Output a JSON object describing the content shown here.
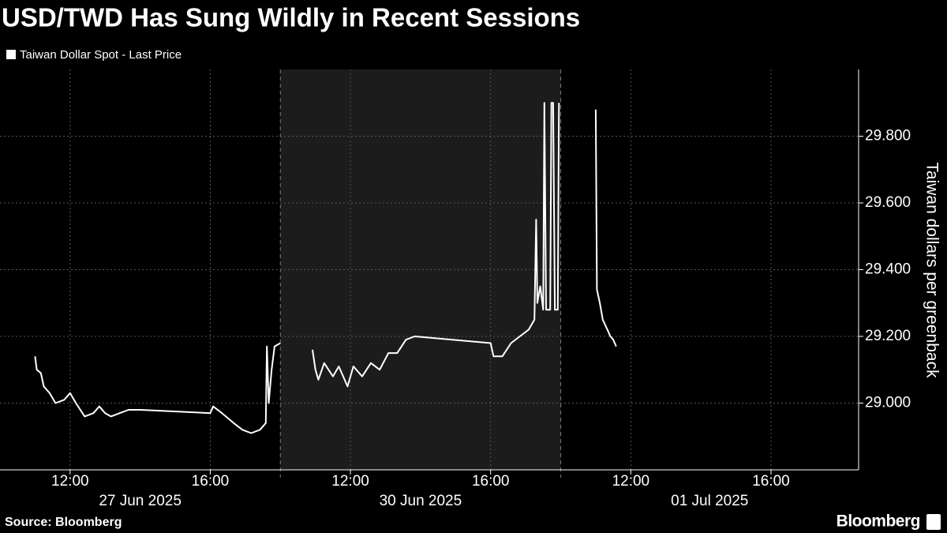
{
  "chart_data": {
    "type": "line",
    "title": "USD/TWD Has Sung Wildly in Recent Sessions",
    "ylabel": "Taiwan dollars per greenback",
    "source": "Source: Bloomberg",
    "brand": "Bloomberg",
    "ylim": [
      28.8,
      30.0
    ],
    "yticks": [
      {
        "value": 29.0,
        "label": "29.000"
      },
      {
        "value": 29.2,
        "label": "29.200"
      },
      {
        "value": 29.4,
        "label": "29.400"
      },
      {
        "value": 29.6,
        "label": "29.600"
      },
      {
        "value": 29.8,
        "label": "29.800"
      }
    ],
    "grid": true,
    "sessions": [
      {
        "label": "27 Jun 2025",
        "shaded": false,
        "xlim": [
          "2025-06-27T10:00",
          "2025-06-27T18:00"
        ],
        "xticks": [
          {
            "value": "2025-06-27T12:00",
            "label": "12:00"
          },
          {
            "value": "2025-06-27T16:00",
            "label": "16:00"
          }
        ]
      },
      {
        "label": "30 Jun 2025",
        "shaded": true,
        "xlim": [
          "2025-06-30T10:00",
          "2025-06-30T18:00"
        ],
        "xticks": [
          {
            "value": "2025-06-30T12:00",
            "label": "12:00"
          },
          {
            "value": "2025-06-30T16:00",
            "label": "16:00"
          }
        ]
      },
      {
        "label": "01 Jul 2025",
        "shaded": false,
        "xlim": [
          "2025-07-01T10:00",
          "2025-07-01T18:30"
        ],
        "xticks": [
          {
            "value": "2025-07-01T12:00",
            "label": "12:00"
          },
          {
            "value": "2025-07-01T16:00",
            "label": "16:00"
          }
        ]
      }
    ],
    "series": [
      {
        "name": "Taiwan Dollar Spot - Last Price",
        "color": "#ffffff",
        "x": [
          "2025-06-27T11:00",
          "2025-06-27T11:03",
          "2025-06-27T11:10",
          "2025-06-27T11:15",
          "2025-06-27T11:25",
          "2025-06-27T11:35",
          "2025-06-27T11:50",
          "2025-06-27T12:00",
          "2025-06-27T12:10",
          "2025-06-27T12:25",
          "2025-06-27T12:40",
          "2025-06-27T12:50",
          "2025-06-27T13:00",
          "2025-06-27T13:10",
          "2025-06-27T13:25",
          "2025-06-27T13:40",
          "2025-06-27T14:00",
          "2025-06-27T16:00",
          "2025-06-27T16:05",
          "2025-06-27T16:20",
          "2025-06-27T16:40",
          "2025-06-27T16:55",
          "2025-06-27T17:10",
          "2025-06-27T17:25",
          "2025-06-27T17:35",
          "2025-06-27T17:37",
          "2025-06-27T17:40",
          "2025-06-27T17:45",
          "2025-06-27T17:50",
          "2025-06-27T18:00",
          "2025-06-30T10:00",
          "2025-06-30T10:55",
          "2025-06-30T11:00",
          "2025-06-30T11:05",
          "2025-06-30T11:15",
          "2025-06-30T11:30",
          "2025-06-30T11:40",
          "2025-06-30T11:55",
          "2025-06-30T12:05",
          "2025-06-30T12:20",
          "2025-06-30T12:35",
          "2025-06-30T12:50",
          "2025-06-30T13:05",
          "2025-06-30T13:20",
          "2025-06-30T13:35",
          "2025-06-30T13:50",
          "2025-06-30T16:00",
          "2025-06-30T16:05",
          "2025-06-30T16:20",
          "2025-06-30T16:35",
          "2025-06-30T16:50",
          "2025-06-30T17:05",
          "2025-06-30T17:15",
          "2025-06-30T17:18",
          "2025-06-30T17:20",
          "2025-06-30T17:25",
          "2025-06-30T17:30",
          "2025-06-30T17:32",
          "2025-06-30T17:35",
          "2025-06-30T17:42",
          "2025-06-30T17:44",
          "2025-06-30T17:47",
          "2025-06-30T17:50",
          "2025-06-30T17:55",
          "2025-06-30T17:57",
          "2025-07-01T10:00",
          "2025-07-01T11:00",
          "2025-07-01T11:02",
          "2025-07-01T11:07",
          "2025-07-01T11:12",
          "2025-07-01T11:20",
          "2025-07-01T11:25",
          "2025-07-01T11:30",
          "2025-07-01T11:35"
        ],
        "values": [
          29.14,
          29.1,
          29.09,
          29.05,
          29.03,
          29.0,
          29.01,
          29.03,
          29.0,
          28.96,
          28.97,
          28.99,
          28.97,
          28.96,
          28.97,
          28.98,
          28.98,
          28.97,
          28.99,
          28.97,
          28.94,
          28.92,
          28.91,
          28.92,
          28.94,
          29.17,
          29.0,
          29.1,
          29.17,
          29.18,
          null,
          29.16,
          29.1,
          29.07,
          29.12,
          29.08,
          29.11,
          29.05,
          29.11,
          29.08,
          29.12,
          29.1,
          29.15,
          29.15,
          29.19,
          29.2,
          29.18,
          29.14,
          29.14,
          29.18,
          29.2,
          29.22,
          29.25,
          29.55,
          29.3,
          29.35,
          29.28,
          29.9,
          29.28,
          29.28,
          29.9,
          29.9,
          29.28,
          29.28,
          29.9,
          null,
          29.88,
          29.34,
          29.3,
          29.25,
          29.22,
          29.2,
          29.19,
          29.17
        ]
      }
    ]
  }
}
